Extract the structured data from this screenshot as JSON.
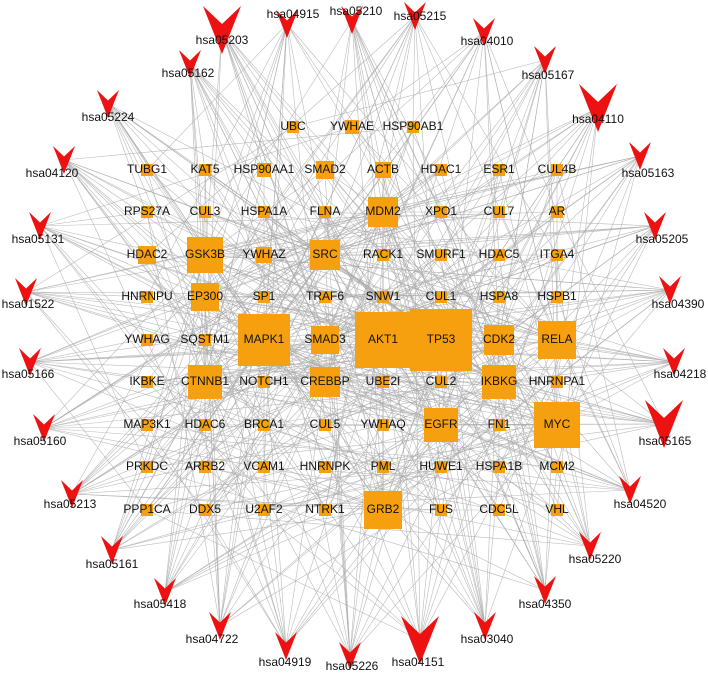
{
  "network": {
    "genes": [
      "UBC",
      "YWHAE",
      "HSP90AB1",
      "TUBG1",
      "KAT5",
      "HSP90AA1",
      "SMAD2",
      "ACTB",
      "HDAC1",
      "ESR1",
      "CUL4B",
      "RPS27A",
      "CUL3",
      "HSPA1A",
      "FLNA",
      "MDM2",
      "XPO1",
      "CUL7",
      "AR",
      "HDAC2",
      "GSK3B",
      "YWHAZ",
      "SRC",
      "RACK1",
      "SMURF1",
      "HDAC5",
      "ITGA4",
      "HNRNPU",
      "EP300",
      "SP1",
      "TRAF6",
      "SNW1",
      "CUL1",
      "HSPA8",
      "HSPB1",
      "YWHAG",
      "SQSTM1",
      "MAPK1",
      "SMAD3",
      "AKT1",
      "TP53",
      "CDK2",
      "RELA",
      "IKBKE",
      "CTNNB1",
      "NOTCH1",
      "CREBBP",
      "UBE2I",
      "CUL2",
      "IKBKG",
      "HNRNPA1",
      "MAP3K1",
      "HDAC6",
      "BRCA1",
      "CUL5",
      "YWHAQ",
      "EGFR",
      "FN1",
      "MYC",
      "PRKDC",
      "ARRB2",
      "VCAM1",
      "HNRNPK",
      "PML",
      "HUWE1",
      "HSPA1B",
      "MCM2",
      "PPP1CA",
      "DDX5",
      "U2AF2",
      "NTRK1",
      "GRB2",
      "FUS",
      "CDC5L",
      "VHL"
    ],
    "pathways": [
      "hsa04915",
      "hsa05210",
      "hsa05215",
      "hsa05203",
      "hsa04010",
      "hsa05162",
      "hsa05167",
      "hsa05224",
      "hsa04110",
      "hsa04120",
      "hsa05163",
      "hsa05131",
      "hsa05205",
      "hsa01522",
      "hsa04390",
      "hsa05166",
      "hsa04218",
      "hsa05160",
      "hsa05165",
      "hsa05213",
      "hsa04520",
      "hsa05161",
      "hsa05220",
      "hsa05418",
      "hsa04350",
      "hsa04722",
      "hsa03040",
      "hsa04919",
      "hsa05226",
      "hsa04151"
    ]
  }
}
